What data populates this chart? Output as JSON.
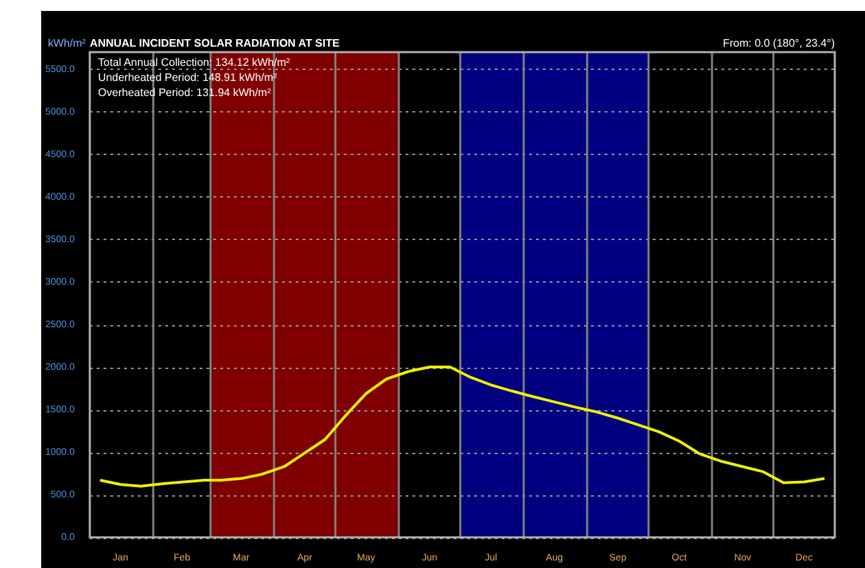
{
  "chart_data": {
    "type": "line",
    "title": "ANNUAL INCIDENT SOLAR RADIATION AT SITE",
    "ylabel": "kWh/m²",
    "annotations": [
      "Total Annual Collection: 134.12 kWh/m²",
      "Underheated Period: 148.91 kWh/m²",
      "Overheated Period: 131.94 kWh/m²",
      "From: 0.0 (180°, 23.4°)"
    ],
    "x": [
      "--01-06",
      "--01-16",
      "--01-26",
      "--02-06",
      "--02-16",
      "--02-26",
      "--03-06",
      "--03-16",
      "--03-26",
      "--04-06",
      "--04-16",
      "--04-26",
      "--05-06",
      "--05-16",
      "--05-26",
      "--06-06",
      "--06-16",
      "--06-26",
      "--07-06",
      "--07-16",
      "--07-26",
      "--08-06",
      "--08-16",
      "--08-26",
      "--09-06",
      "--09-16",
      "--09-26",
      "--10-06",
      "--10-16",
      "--10-26",
      "--11-06",
      "--11-16",
      "--11-26",
      "--12-06",
      "--12-16",
      "--12-26"
    ],
    "series": [
      {
        "color": "#f0f000",
        "values": [
          670,
          620,
          600,
          630,
          650,
          670,
          670,
          690,
          740,
          830,
          990,
          1150,
          1430,
          1690,
          1860,
          1950,
          2000,
          2000,
          1880,
          1790,
          1720,
          1650,
          1590,
          1530,
          1470,
          1400,
          1320,
          1240,
          1130,
          980,
          890,
          830,
          770,
          640,
          650,
          690
        ]
      }
    ],
    "xlim": [
      "--01-01",
      "--12-31"
    ],
    "xticks": [
      {
        "value": "--01-16",
        "label": "Jan"
      },
      {
        "value": "--02-15",
        "label": "Feb"
      },
      {
        "value": "--03-16",
        "label": "Mar"
      },
      {
        "value": "--04-16",
        "label": "Apr"
      },
      {
        "value": "--05-16",
        "label": "May"
      },
      {
        "value": "--06-16",
        "label": "Jun"
      },
      {
        "value": "--07-16",
        "label": "Jul"
      },
      {
        "value": "--08-16",
        "label": "Aug"
      },
      {
        "value": "--09-16",
        "label": "Sep"
      },
      {
        "value": "--10-16",
        "label": "Oct"
      },
      {
        "value": "--11-16",
        "label": "Nov"
      },
      {
        "value": "--12-16",
        "label": "Dec"
      }
    ],
    "ylim": [
      0,
      5700
    ],
    "yticks": [
      {
        "value": 0,
        "label": "0.0"
      },
      {
        "value": 500,
        "label": "500.0"
      },
      {
        "value": 1000,
        "label": "1000.0"
      },
      {
        "value": 1500,
        "label": "1500.0"
      },
      {
        "value": 2000,
        "label": "2000.0"
      },
      {
        "value": 2500,
        "label": "2500.0"
      },
      {
        "value": 3000,
        "label": "3000.0"
      },
      {
        "value": 3500,
        "label": "3500.0"
      },
      {
        "value": 4000,
        "label": "4000.0"
      },
      {
        "value": 4500,
        "label": "4500.0"
      },
      {
        "value": 5000,
        "label": "5000.0"
      },
      {
        "value": 5500,
        "label": "5500.0"
      }
    ],
    "bands": [
      {
        "axis": "x",
        "from": "--03-01",
        "to": "--06-01",
        "color": "#800000"
      },
      {
        "axis": "x",
        "from": "--07-01",
        "to": "--10-01",
        "color": "#000080"
      }
    ],
    "ref_lines": [
      {
        "axis": "x",
        "value": "--02-01",
        "color": "#808080"
      },
      {
        "axis": "x",
        "value": "--03-01",
        "color": "#808080"
      },
      {
        "axis": "x",
        "value": "--04-01",
        "color": "#808080"
      },
      {
        "axis": "x",
        "value": "--05-01",
        "color": "#808080"
      },
      {
        "axis": "x",
        "value": "--06-01",
        "color": "#808080"
      },
      {
        "axis": "x",
        "value": "--07-01",
        "color": "#808080"
      },
      {
        "axis": "x",
        "value": "--08-01",
        "color": "#808080"
      },
      {
        "axis": "x",
        "value": "--09-01",
        "color": "#808080"
      },
      {
        "axis": "x",
        "value": "--10-01",
        "color": "#808080"
      },
      {
        "axis": "x",
        "value": "--11-01",
        "color": "#808080"
      },
      {
        "axis": "x",
        "value": "--12-01",
        "color": "#808080"
      }
    ],
    "grid": "y",
    "marker": "none",
    "line_style": "solid"
  }
}
